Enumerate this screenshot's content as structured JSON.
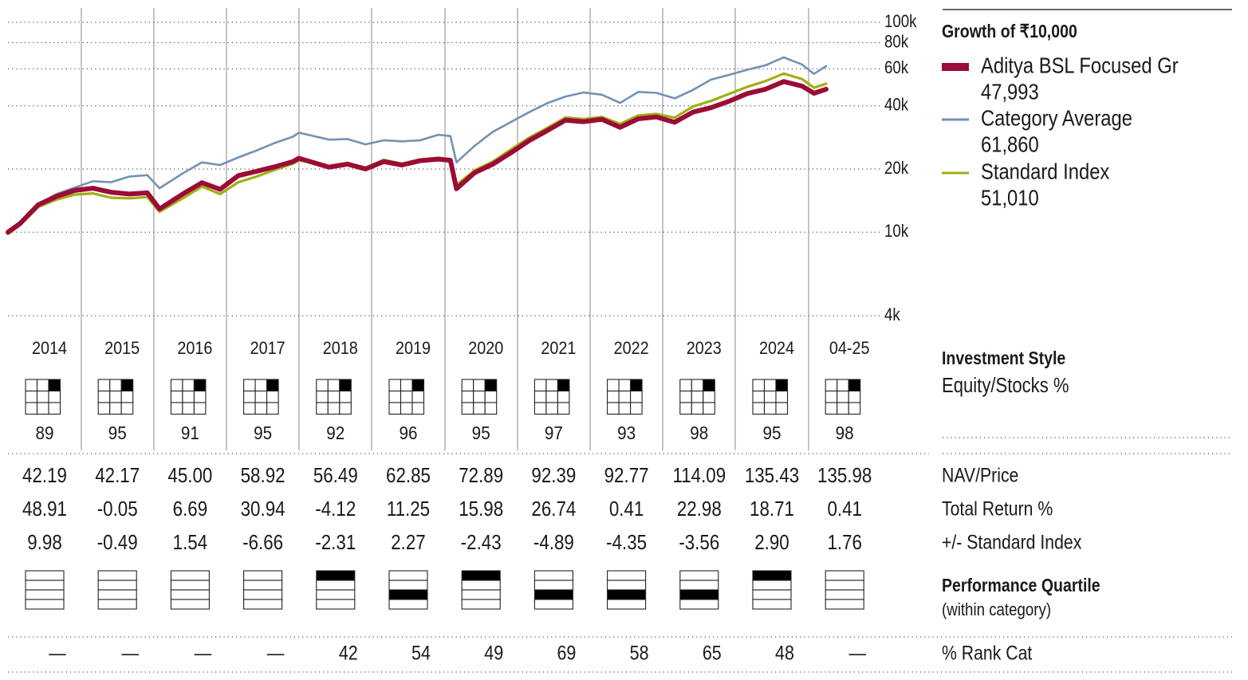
{
  "legend": {
    "title": "Growth of  ₹10,000",
    "items": [
      {
        "label": "Aditya BSL Focused Gr",
        "value": "47,993",
        "color": "#9b0c36",
        "swatch": "bar"
      },
      {
        "label": "Category Average",
        "value": "61,860",
        "color": "#7391b3",
        "swatch": "line"
      },
      {
        "label": "Standard Index",
        "value": "51,010",
        "color": "#a0ae12",
        "swatch": "line"
      }
    ]
  },
  "chart_data": {
    "type": "line",
    "y_scale": "log",
    "ylim": [
      4000,
      100000
    ],
    "y_ticks": [
      {
        "value": 100000,
        "label": "100k"
      },
      {
        "value": 80000,
        "label": "80k"
      },
      {
        "value": 60000,
        "label": "60k"
      },
      {
        "value": 40000,
        "label": "40k"
      },
      {
        "value": 20000,
        "label": "20k"
      },
      {
        "value": 10000,
        "label": "10k"
      },
      {
        "value": 4000,
        "label": "4k"
      }
    ],
    "x_start": "2014-01",
    "x_end": "2025-04",
    "categories": [
      "2014",
      "2015",
      "2016",
      "2017",
      "2018",
      "2019",
      "2020",
      "2021",
      "2022",
      "2023",
      "2024",
      "04-25"
    ],
    "series": [
      {
        "name": "Aditya BSL Focused Gr",
        "color": "#9b0c36",
        "x": [
          "2014-01",
          "2014-03",
          "2014-06",
          "2014-09",
          "2014-12",
          "2015-03",
          "2015-06",
          "2015-09",
          "2015-12",
          "2016-02",
          "2016-06",
          "2016-09",
          "2016-12",
          "2017-03",
          "2017-06",
          "2017-09",
          "2017-12",
          "2018-01",
          "2018-06",
          "2018-09",
          "2018-12",
          "2019-03",
          "2019-06",
          "2019-09",
          "2019-12",
          "2020-02",
          "2020-03",
          "2020-06",
          "2020-09",
          "2020-12",
          "2021-03",
          "2021-06",
          "2021-09",
          "2021-12",
          "2022-03",
          "2022-06",
          "2022-09",
          "2022-12",
          "2023-03",
          "2023-06",
          "2023-09",
          "2023-12",
          "2024-03",
          "2024-06",
          "2024-09",
          "2024-12",
          "2025-02",
          "2025-04"
        ],
        "y": [
          10000,
          11000,
          13500,
          14800,
          15800,
          16200,
          15500,
          15200,
          15400,
          12900,
          15300,
          17200,
          16000,
          18600,
          19500,
          20500,
          21700,
          22500,
          20400,
          21100,
          20000,
          21700,
          20900,
          21900,
          22300,
          22000,
          16100,
          19200,
          21100,
          23900,
          27300,
          30500,
          34200,
          33600,
          34500,
          31600,
          34700,
          35400,
          33400,
          37300,
          39200,
          42100,
          45800,
          48000,
          52200,
          49700,
          45900,
          47993
        ]
      },
      {
        "name": "Category Average",
        "color": "#7391b3",
        "x": [
          "2014-01",
          "2014-03",
          "2014-06",
          "2014-09",
          "2014-12",
          "2015-03",
          "2015-06",
          "2015-09",
          "2015-12",
          "2016-02",
          "2016-06",
          "2016-09",
          "2016-12",
          "2017-03",
          "2017-06",
          "2017-09",
          "2017-12",
          "2018-01",
          "2018-06",
          "2018-09",
          "2018-12",
          "2019-03",
          "2019-06",
          "2019-09",
          "2019-12",
          "2020-02",
          "2020-03",
          "2020-06",
          "2020-09",
          "2020-12",
          "2021-03",
          "2021-06",
          "2021-09",
          "2021-12",
          "2022-03",
          "2022-06",
          "2022-09",
          "2022-12",
          "2023-03",
          "2023-06",
          "2023-09",
          "2023-12",
          "2024-03",
          "2024-06",
          "2024-09",
          "2024-12",
          "2025-02",
          "2025-04"
        ],
        "y": [
          10000,
          11200,
          13600,
          15200,
          16300,
          17500,
          17300,
          18400,
          18700,
          16200,
          19200,
          21500,
          20900,
          22700,
          24500,
          26600,
          28500,
          29800,
          27600,
          27800,
          26200,
          27400,
          27100,
          27400,
          29100,
          28700,
          21500,
          25800,
          30100,
          33500,
          37300,
          41200,
          44300,
          46300,
          45200,
          41300,
          46600,
          46100,
          43400,
          47600,
          53300,
          56200,
          59400,
          62400,
          68100,
          63000,
          56800,
          61860
        ]
      },
      {
        "name": "Standard Index",
        "color": "#a0ae12",
        "x": [
          "2014-01",
          "2014-03",
          "2014-06",
          "2014-09",
          "2014-12",
          "2015-03",
          "2015-06",
          "2015-09",
          "2015-12",
          "2016-02",
          "2016-06",
          "2016-09",
          "2016-12",
          "2017-03",
          "2017-06",
          "2017-09",
          "2017-12",
          "2018-01",
          "2018-06",
          "2018-09",
          "2018-12",
          "2019-03",
          "2019-06",
          "2019-09",
          "2019-12",
          "2020-02",
          "2020-03",
          "2020-06",
          "2020-09",
          "2020-12",
          "2021-03",
          "2021-06",
          "2021-09",
          "2021-12",
          "2022-03",
          "2022-06",
          "2022-09",
          "2022-12",
          "2023-03",
          "2023-06",
          "2023-09",
          "2023-12",
          "2024-03",
          "2024-06",
          "2024-09",
          "2024-12",
          "2025-02",
          "2025-04"
        ],
        "y": [
          9800,
          10800,
          13200,
          14300,
          15100,
          15300,
          14600,
          14500,
          14700,
          12500,
          14600,
          16500,
          15200,
          17300,
          18400,
          19800,
          21200,
          22000,
          20700,
          21400,
          20300,
          22100,
          21200,
          22200,
          22600,
          22300,
          16800,
          19700,
          21700,
          24800,
          28200,
          31400,
          35200,
          34600,
          35400,
          32800,
          36000,
          36600,
          35100,
          39700,
          42200,
          45600,
          49300,
          52500,
          57000,
          53700,
          48800,
          51010
        ]
      }
    ]
  },
  "investment_style": {
    "title": "Investment Style",
    "subtitle": "Equity/Stocks %",
    "values": [
      "89",
      "95",
      "91",
      "95",
      "92",
      "96",
      "95",
      "97",
      "93",
      "98",
      "95",
      "98"
    ]
  },
  "table": {
    "rows": [
      {
        "label": "NAV/Price",
        "values": [
          "42.19",
          "42.17",
          "45.00",
          "58.92",
          "56.49",
          "62.85",
          "72.89",
          "92.39",
          "92.77",
          "114.09",
          "135.43",
          "135.98"
        ]
      },
      {
        "label": "Total Return %",
        "values": [
          "48.91",
          "-0.05",
          "6.69",
          "30.94",
          "-4.12",
          "11.25",
          "15.98",
          "26.74",
          "0.41",
          "22.98",
          "18.71",
          "0.41"
        ]
      },
      {
        "label": "+/- Standard Index",
        "values": [
          "9.98",
          "-0.49",
          "1.54",
          "-6.66",
          "-2.31",
          "2.27",
          "-2.43",
          "-4.89",
          "-4.35",
          "-3.56",
          "2.90",
          "1.76"
        ]
      }
    ]
  },
  "quartile": {
    "title": "Performance Quartile",
    "subtitle": "(within category)",
    "values": [
      0,
      0,
      0,
      0,
      1,
      3,
      1,
      3,
      3,
      3,
      1,
      0
    ]
  },
  "rank": {
    "label": "% Rank Cat",
    "values": [
      "—",
      "—",
      "—",
      "—",
      "42",
      "54",
      "49",
      "69",
      "58",
      "65",
      "48",
      "—"
    ]
  }
}
